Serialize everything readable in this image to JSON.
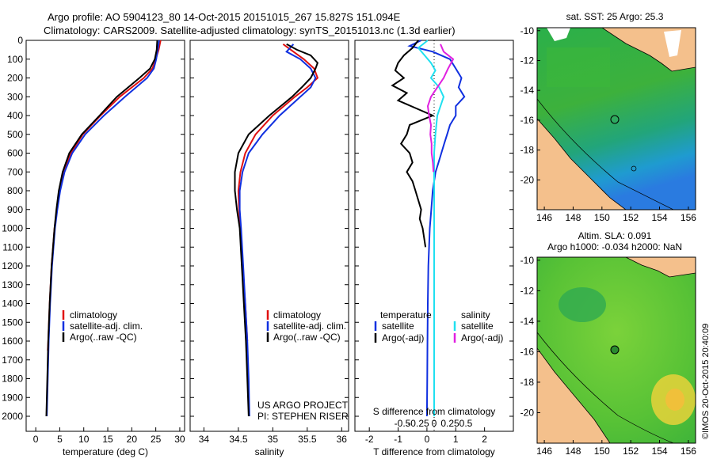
{
  "header": {
    "line1": "Argo profile: AO 5904123_80 14-Oct-2015 20151015_267 15.827S 151.094E",
    "line2": "Climatology: CARS2009. Satellite-adjusted climatology: synTS_20151013.nc (1.3d earlier)"
  },
  "colors": {
    "climatology": "#e01010",
    "satellite": "#1030e0",
    "argo": "#000000",
    "cyan": "#20e0f0",
    "magenta": "#e020e0",
    "land": "#f4c08c"
  },
  "chart_data": [
    {
      "id": "temperature",
      "type": "line",
      "xlabel": "temperature (deg C)",
      "ylabel": "depth",
      "xlim": [
        -2,
        31
      ],
      "ylim": [
        0,
        2080
      ],
      "xticks": [
        "0",
        "5",
        "10",
        "15",
        "20",
        "25",
        "30"
      ],
      "xtick_values": [
        0,
        5,
        10,
        15,
        20,
        25,
        30
      ],
      "yticks": [
        "0",
        "100",
        "200",
        "300",
        "400",
        "500",
        "600",
        "700",
        "800",
        "900",
        "1000",
        "1100",
        "1200",
        "1300",
        "1400",
        "1500",
        "1600",
        "1700",
        "1800",
        "1900",
        "2000"
      ],
      "ytick_values": [
        0,
        100,
        200,
        300,
        400,
        500,
        600,
        700,
        800,
        900,
        1000,
        1100,
        1200,
        1300,
        1400,
        1500,
        1600,
        1700,
        1800,
        1900,
        2000
      ],
      "legend": [
        "climatology",
        "satellite-adj. clim.",
        "Argo(..raw -QC)"
      ],
      "series": [
        {
          "name": "climatology",
          "color": "#e01010",
          "depth": [
            0,
            50,
            100,
            150,
            200,
            300,
            400,
            500,
            600,
            700,
            800,
            900,
            1000,
            1200,
            1400,
            1600,
            1650
          ],
          "values": [
            26.0,
            25.6,
            25.0,
            24.3,
            22.5,
            17.5,
            13.5,
            9.8,
            7.3,
            5.8,
            5.0,
            4.4,
            3.9,
            3.3,
            2.9,
            2.6,
            2.5
          ]
        },
        {
          "name": "satellite-adj. clim.",
          "color": "#1030e0",
          "depth": [
            0,
            50,
            100,
            150,
            200,
            300,
            400,
            500,
            600,
            700,
            800,
            900,
            1000,
            1200,
            1400,
            1600,
            1800,
            2000
          ],
          "values": [
            25.7,
            25.4,
            25.1,
            24.6,
            23.2,
            18.6,
            14.2,
            10.3,
            7.6,
            6.0,
            5.1,
            4.5,
            4.0,
            3.4,
            3.0,
            2.7,
            2.5,
            2.3
          ]
        },
        {
          "name": "Argo(..raw -QC)",
          "color": "#000000",
          "depth": [
            0,
            50,
            100,
            150,
            200,
            300,
            400,
            500,
            600,
            700,
            800,
            900,
            1000,
            1200,
            1400,
            1600,
            1800,
            2000
          ],
          "values": [
            25.3,
            25.2,
            24.8,
            23.8,
            21.6,
            16.9,
            13.3,
            9.6,
            7.0,
            5.6,
            4.8,
            4.3,
            3.9,
            3.3,
            2.9,
            2.6,
            2.4,
            2.2
          ]
        }
      ]
    },
    {
      "id": "salinity",
      "type": "line",
      "xlabel": "salinity",
      "xlim": [
        33.8,
        36.1
      ],
      "ylim": [
        0,
        2080
      ],
      "xticks": [
        "34",
        "34.5",
        "35",
        "35.5",
        "36"
      ],
      "xtick_values": [
        34,
        34.5,
        35,
        35.5,
        36
      ],
      "legend": [
        "climatology",
        "satellite-adj. clim.",
        "Argo(..raw -QC)"
      ],
      "series": [
        {
          "name": "climatology",
          "color": "#e01010",
          "depth": [
            20,
            60,
            100,
            150,
            200,
            250,
            300,
            400,
            500,
            600,
            700,
            800,
            900,
            1000,
            1200,
            1400,
            1600
          ],
          "values": [
            35.15,
            35.3,
            35.45,
            35.6,
            35.65,
            35.5,
            35.32,
            35.0,
            34.75,
            34.6,
            34.53,
            34.5,
            34.51,
            34.53,
            34.56,
            34.6,
            34.63
          ]
        },
        {
          "name": "satellite-adj. clim.",
          "color": "#1030e0",
          "depth": [
            20,
            60,
            100,
            150,
            200,
            250,
            300,
            400,
            500,
            600,
            700,
            800,
            900,
            1000,
            1200,
            1400,
            1600,
            1800,
            2000
          ],
          "values": [
            35.3,
            35.2,
            35.4,
            35.55,
            35.62,
            35.55,
            35.4,
            35.1,
            34.85,
            34.65,
            34.56,
            34.52,
            34.52,
            34.54,
            34.57,
            34.6,
            34.63,
            34.65,
            34.66
          ]
        },
        {
          "name": "Argo(..raw -QC)",
          "color": "#000000",
          "depth": [
            20,
            50,
            80,
            120,
            150,
            200,
            250,
            300,
            400,
            500,
            600,
            700,
            800,
            900,
            1000,
            1200,
            1400,
            1600,
            1800,
            2000
          ],
          "values": [
            35.2,
            35.35,
            35.55,
            35.65,
            35.62,
            35.55,
            35.42,
            35.28,
            34.95,
            34.65,
            34.5,
            34.45,
            34.45,
            34.48,
            34.52,
            34.55,
            34.58,
            34.61,
            34.63,
            34.65
          ]
        }
      ],
      "annotation": [
        "US ARGO PROJECT",
        "PI: STEPHEN RISER"
      ]
    },
    {
      "id": "difference",
      "type": "line",
      "xlabel": "T difference from climatology",
      "xlabel_top": "S difference from climatology",
      "xlim": [
        -2.5,
        3.0
      ],
      "ylim": [
        0,
        2080
      ],
      "xticks": [
        "-2",
        "-1",
        "0",
        "1",
        "2"
      ],
      "xtick_values": [
        -2,
        -1,
        0,
        1,
        2
      ],
      "sticks": [
        "-0.5",
        "-0.25",
        "0",
        "0.25",
        "0.5"
      ],
      "stick_values": [
        -0.5,
        -0.25,
        0,
        0.25,
        0.5
      ],
      "legend_temperature": {
        "title": "temperature",
        "items": [
          "satellite",
          "Argo(-adj)"
        ]
      },
      "legend_salinity": {
        "title": "salinity",
        "items": [
          "satellite",
          "Argo(-adj)"
        ]
      },
      "series": [
        {
          "name": "T satellite",
          "color": "#1030e0",
          "depth": [
            0,
            30,
            60,
            100,
            150,
            200,
            250,
            300,
            350,
            400,
            450,
            500,
            550,
            600,
            650,
            700,
            750,
            800,
            900,
            1000,
            1200,
            1400,
            1600,
            1800,
            2000
          ],
          "values": [
            -0.2,
            -0.6,
            0.2,
            0.8,
            1.0,
            1.2,
            1.1,
            1.3,
            1.0,
            1.0,
            0.8,
            0.7,
            0.6,
            0.5,
            0.4,
            0.3,
            0.25,
            0.2,
            0.15,
            0.1,
            0.05,
            0.03,
            0.02,
            0.01,
            0.0
          ]
        },
        {
          "name": "T Argo(-adj)",
          "color": "#000000",
          "depth": [
            0,
            40,
            80,
            120,
            160,
            200,
            240,
            280,
            320,
            360,
            400,
            450,
            500,
            550,
            600,
            650,
            700,
            750,
            800,
            850,
            900,
            950,
            1000,
            1050,
            1100
          ],
          "values": [
            -0.3,
            -0.5,
            -0.8,
            -1.0,
            -1.1,
            -0.8,
            -1.2,
            -0.7,
            -1.0,
            -0.4,
            0.2,
            -0.6,
            -0.7,
            -0.9,
            -0.6,
            -0.5,
            -0.7,
            -0.5,
            -0.4,
            -0.3,
            -0.2,
            -0.25,
            -0.15,
            -0.1,
            -0.05
          ]
        },
        {
          "name": "S satellite",
          "color": "#20e0f0",
          "depth": [
            0,
            40,
            80,
            120,
            160,
            200,
            250,
            300,
            400,
            500,
            600,
            700,
            800,
            900,
            1000,
            1200,
            1400,
            1600,
            1800,
            2000
          ],
          "values": [
            -0.1,
            -0.25,
            -0.15,
            -0.05,
            0.02,
            -0.05,
            0.08,
            0.15,
            0.05,
            0.02,
            0.0,
            0.0,
            0.0,
            0.0,
            0.0,
            0.0,
            0.0,
            0.0,
            0.0,
            0.0
          ]
        },
        {
          "name": "S Argo(-adj)",
          "color": "#e020e0",
          "depth": [
            20,
            60,
            100,
            150,
            200,
            250,
            300,
            350,
            400,
            450,
            500,
            550,
            600,
            650,
            700
          ],
          "values": [
            0.1,
            0.15,
            0.3,
            0.22,
            0.15,
            0.05,
            -0.05,
            -0.1,
            -0.08,
            -0.05,
            -0.06,
            -0.04,
            -0.04,
            -0.02,
            -0.01
          ]
        }
      ]
    },
    {
      "id": "map-sst",
      "type": "heatmap",
      "title": "sat. SST: 25 Argo: 25.3",
      "xlim": [
        145.5,
        156.5
      ],
      "ylim": [
        -22,
        -9.8
      ],
      "xticks": [
        "146",
        "148",
        "150",
        "152",
        "154",
        "156"
      ],
      "xtick_values": [
        146,
        148,
        150,
        152,
        154,
        156
      ],
      "yticks": [
        "-10",
        "-12",
        "-14",
        "-16",
        "-18",
        "-20"
      ],
      "ytick_values": [
        -10,
        -12,
        -14,
        -16,
        -18,
        -20
      ],
      "marker": {
        "lon": 151.094,
        "lat": -15.827
      }
    },
    {
      "id": "map-sla",
      "type": "heatmap",
      "title": "Altim. SLA: 0.091",
      "subtitle": "Argo h1000: -0.034 h2000: NaN",
      "xlim": [
        145.5,
        156.5
      ],
      "ylim": [
        -22,
        -9.8
      ],
      "xticks": [
        "146",
        "148",
        "150",
        "152",
        "154",
        "156"
      ],
      "xtick_values": [
        146,
        148,
        150,
        152,
        154,
        156
      ],
      "yticks": [
        "-10",
        "-12",
        "-14",
        "-16",
        "-18",
        "-20"
      ],
      "ytick_values": [
        -10,
        -12,
        -14,
        -16,
        -18,
        -20
      ],
      "marker": {
        "lon": 151.094,
        "lat": -15.827
      }
    }
  ],
  "credit": "©IMOS 20-Oct-2015 20:40:09"
}
